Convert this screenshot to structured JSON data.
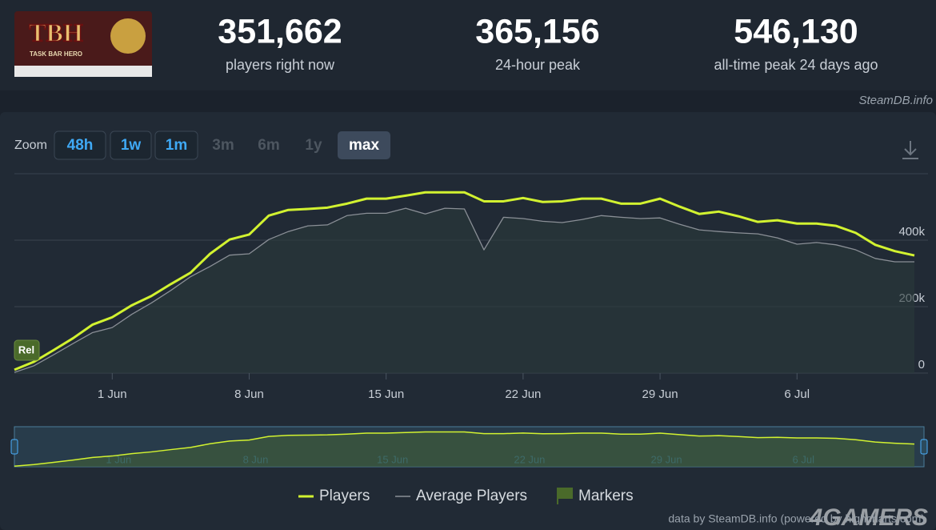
{
  "header": {
    "logo": {
      "title": "TBH",
      "subtitle": "TASK BAR HERO"
    },
    "stats": [
      {
        "value": "351,662",
        "label": "players right now"
      },
      {
        "value": "365,156",
        "label": "24-hour peak"
      },
      {
        "value": "546,130",
        "label": "all-time peak 24 days ago"
      }
    ]
  },
  "source": "SteamDB.info",
  "zoom": {
    "label": "Zoom",
    "buttons": [
      {
        "label": "48h",
        "state": "enabled"
      },
      {
        "label": "1w",
        "state": "enabled"
      },
      {
        "label": "1m",
        "state": "enabled"
      },
      {
        "label": "3m",
        "state": "disabled"
      },
      {
        "label": "6m",
        "state": "disabled"
      },
      {
        "label": "1y",
        "state": "disabled"
      },
      {
        "label": "max",
        "state": "selected"
      }
    ]
  },
  "chart_data": {
    "type": "line",
    "x": [
      "27 May",
      "28 May",
      "29 May",
      "30 May",
      "31 May",
      "1 Jun",
      "2 Jun",
      "3 Jun",
      "4 Jun",
      "5 Jun",
      "6 Jun",
      "7 Jun",
      "8 Jun",
      "9 Jun",
      "10 Jun",
      "11 Jun",
      "12 Jun",
      "13 Jun",
      "14 Jun",
      "15 Jun",
      "16 Jun",
      "17 Jun",
      "18 Jun",
      "19 Jun",
      "20 Jun",
      "21 Jun",
      "22 Jun",
      "23 Jun",
      "24 Jun",
      "25 Jun",
      "26 Jun",
      "27 Jun",
      "28 Jun",
      "29 Jun",
      "30 Jun",
      "1 Jul",
      "2 Jul",
      "3 Jul",
      "4 Jul",
      "5 Jul",
      "6 Jul",
      "7 Jul",
      "8 Jul",
      "9 Jul",
      "10 Jul",
      "11 Jul",
      "12 Jul"
    ],
    "series": [
      {
        "name": "Players",
        "color": "#d2f230",
        "values": [
          10000,
          34000,
          69000,
          105000,
          146000,
          168000,
          204000,
          232000,
          268000,
          302000,
          359000,
          402000,
          417000,
          474000,
          491000,
          494000,
          498000,
          510000,
          525000,
          525000,
          534000,
          544000,
          544000,
          544000,
          517000,
          517000,
          527000,
          515000,
          517000,
          525000,
          525000,
          510000,
          510000,
          525000,
          501000,
          479000,
          486000,
          472000,
          455000,
          460000,
          450000,
          450000,
          443000,
          422000,
          386000,
          367000,
          354000
        ]
      },
      {
        "name": "Average Players",
        "color": "#8a8f96",
        "values": [
          2000,
          22000,
          55000,
          89000,
          122000,
          137000,
          177000,
          211000,
          249000,
          290000,
          321000,
          355000,
          359000,
          402000,
          426000,
          443000,
          446000,
          474000,
          481000,
          481000,
          496000,
          479000,
          496000,
          494000,
          371000,
          469000,
          465000,
          457000,
          453000,
          462000,
          474000,
          469000,
          465000,
          467000,
          448000,
          431000,
          426000,
          422000,
          419000,
          407000,
          388000,
          393000,
          386000,
          371000,
          345000,
          335000,
          335000
        ]
      }
    ],
    "ylim": [
      0,
      600000
    ],
    "yticks": [
      0,
      {
        "value": 200000,
        "label": "200k"
      },
      {
        "value": 400000,
        "label": "400k"
      }
    ],
    "xticks": [
      "1 Jun",
      "8 Jun",
      "15 Jun",
      "22 Jun",
      "29 Jun",
      "6 Jul"
    ],
    "grid": true,
    "markers": [
      {
        "x": "27 May",
        "label": "Rel"
      }
    ],
    "markers_legend": {
      "name": "Markers",
      "color": "#4a6a2a"
    }
  },
  "credit": "data by SteamDB.info (powered by highcharts.com)",
  "watermark": "4GAMERS"
}
